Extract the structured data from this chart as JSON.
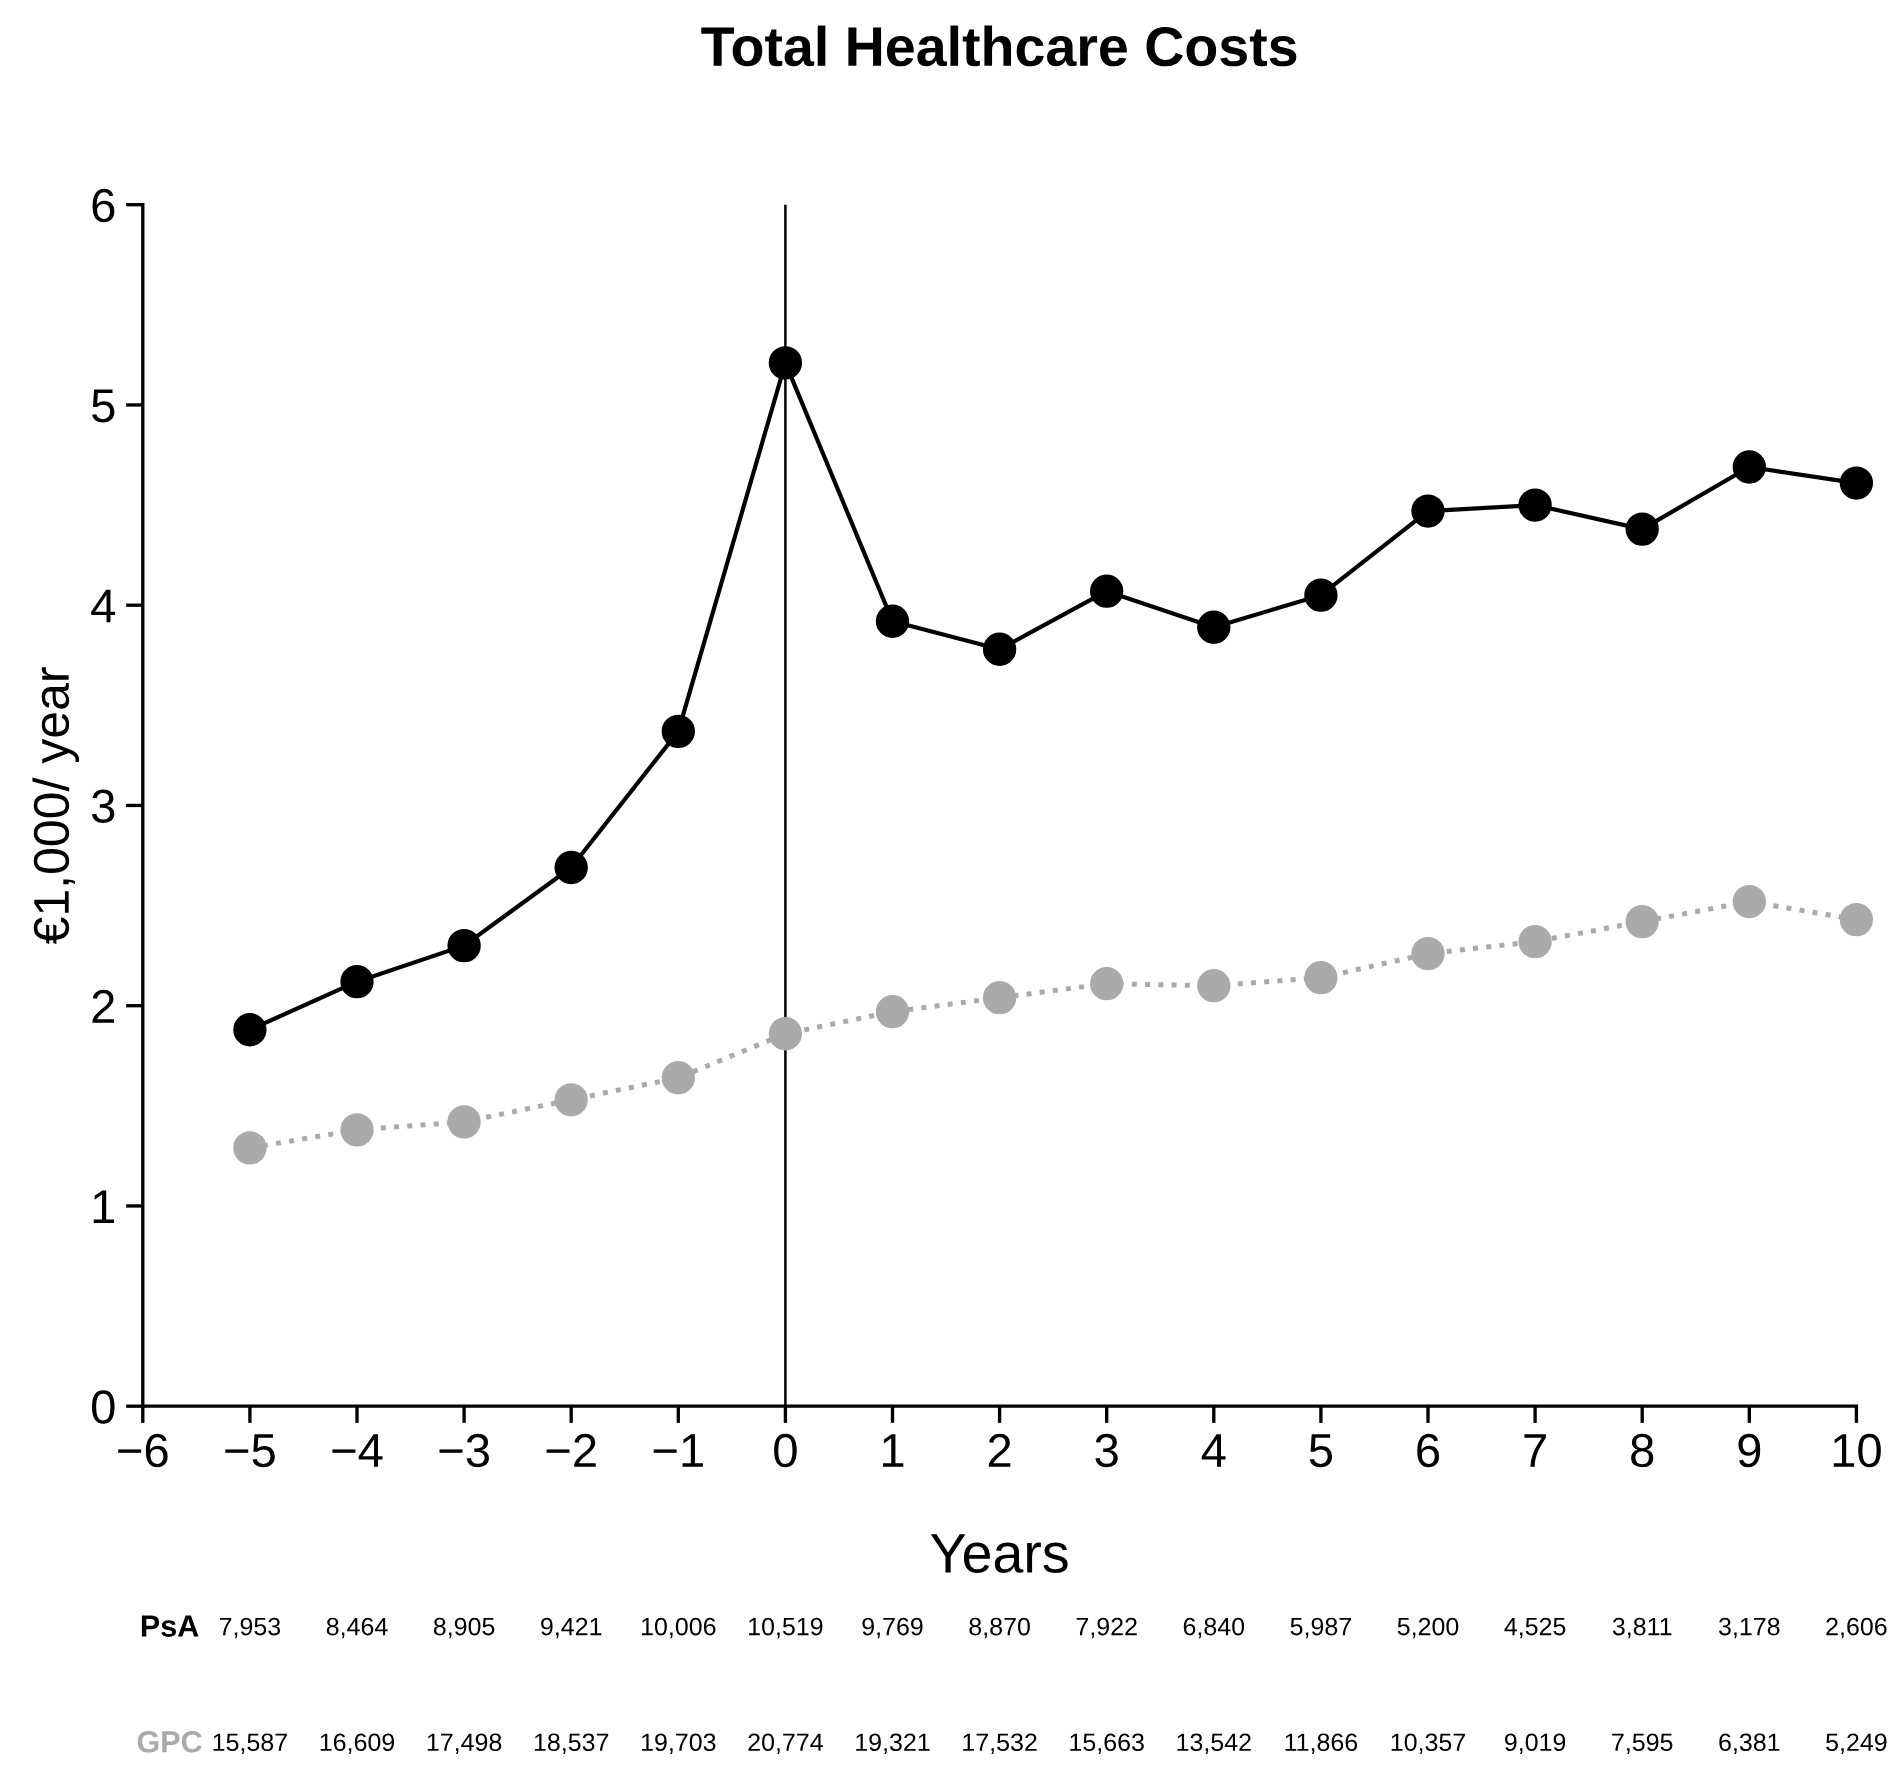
{
  "chart_data": {
    "type": "line",
    "title": "Total Healthcare Costs",
    "xlabel": "Years",
    "ylabel": "€1,000/ year",
    "x": [
      -5,
      -4,
      -3,
      -2,
      -1,
      0,
      1,
      2,
      3,
      4,
      5,
      6,
      7,
      8,
      9,
      10
    ],
    "series": [
      {
        "name": "PsA",
        "color": "#000000",
        "line_style": "solid",
        "values": [
          1.88,
          2.12,
          2.3,
          2.69,
          3.37,
          5.21,
          3.92,
          3.78,
          4.07,
          3.89,
          4.05,
          4.47,
          4.5,
          4.38,
          4.69,
          4.61
        ]
      },
      {
        "name": "GPC",
        "color": "#aaaaaa",
        "line_style": "dotted",
        "values": [
          1.29,
          1.38,
          1.42,
          1.53,
          1.64,
          1.86,
          1.97,
          2.04,
          2.11,
          2.1,
          2.14,
          2.26,
          2.32,
          2.42,
          2.52,
          2.43
        ]
      }
    ],
    "annotations": [
      "7,953",
      "8,464",
      "8,905",
      "9,421",
      "10,006",
      "10,519",
      "9,769",
      "8,870",
      "7,922",
      "6,840",
      "5,987",
      "5,200",
      "4,525",
      "3,811",
      "3,178",
      "2,606",
      "15,587",
      "16,609",
      "17,498",
      "18,537",
      "19,703",
      "20,774",
      "19,321",
      "17,532",
      "15,663",
      "13,542",
      "11,866",
      "10,357",
      "9,019",
      "7,595",
      "6,381",
      "5,249"
    ],
    "marker": "circle",
    "grid": false,
    "legend": false,
    "xlim": [
      -6,
      10
    ],
    "xticks": [
      {
        "value": -6,
        "label": "−6"
      },
      {
        "value": -5,
        "label": "−5"
      },
      {
        "value": -4,
        "label": "−4"
      },
      {
        "value": -3,
        "label": "−3"
      },
      {
        "value": -2,
        "label": "−2"
      },
      {
        "value": -1,
        "label": "−1"
      },
      0,
      1,
      2,
      3,
      4,
      5,
      6,
      7,
      8,
      9,
      10
    ],
    "ylim": [
      0,
      6
    ],
    "yticks": [
      0,
      1,
      2,
      3,
      4,
      5,
      6
    ],
    "ref_lines": [
      {
        "axis": "x",
        "value": 0,
        "color": "#000000",
        "line_style": "solid"
      }
    ]
  }
}
